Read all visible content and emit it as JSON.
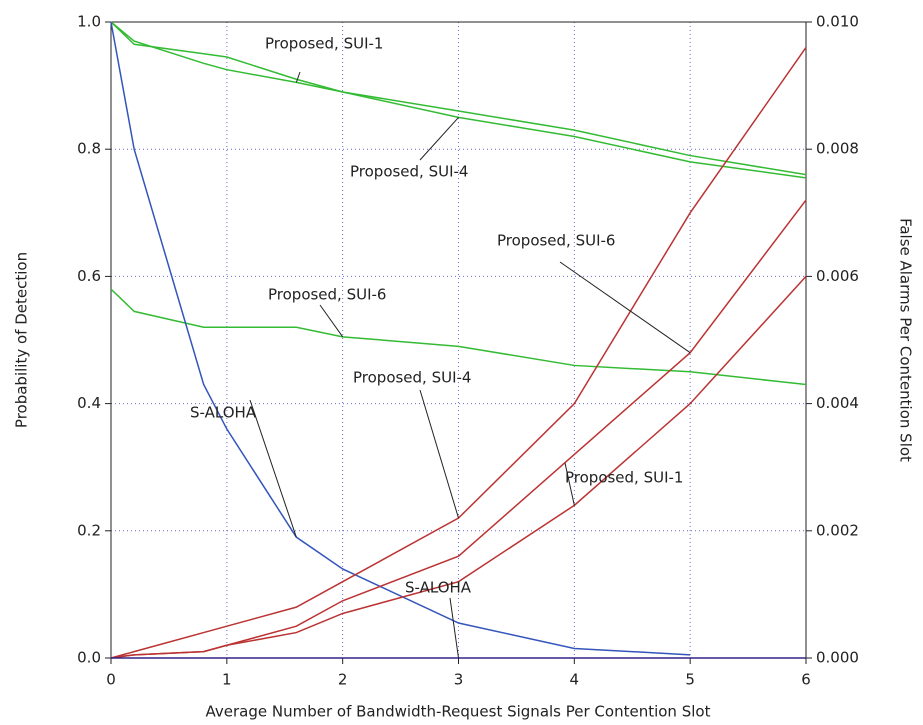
{
  "chart_data": {
    "type": "line",
    "xlabel": "Average Number of Bandwidth-Request Signals Per Contention Slot",
    "ylabel": "Probability of Detection",
    "y2label": "False Alarms Per Contention Slot",
    "x": [
      0,
      0.2,
      0.8,
      1,
      1.6,
      2,
      3,
      4,
      5,
      6
    ],
    "xlim": [
      0,
      6
    ],
    "xticks": [
      0,
      1,
      2,
      3,
      4,
      5,
      6
    ],
    "ylim": [
      0,
      1
    ],
    "yticks": [
      {
        "value": 0,
        "label": "0.0"
      },
      0.2,
      0.4,
      0.6,
      0.8,
      {
        "value": 1,
        "label": "1.0"
      }
    ],
    "y2lim": [
      0,
      0.01
    ],
    "y2ticks": [
      {
        "value": 0,
        "label": "0.000"
      },
      {
        "value": 0.002,
        "label": "0.002"
      },
      {
        "value": 0.004,
        "label": "0.004"
      },
      {
        "value": 0.006,
        "label": "0.006"
      },
      {
        "value": 0.008,
        "label": "0.008"
      },
      {
        "value": 0.01,
        "label": "0.010"
      }
    ],
    "grid": true,
    "series": [
      {
        "name": "Proposed, SUI-1",
        "color": "#33bb33",
        "values": [
          1.0,
          0.97,
          0.935,
          0.925,
          0.905,
          0.89,
          0.86,
          0.83,
          0.79,
          0.76
        ]
      },
      {
        "name": "Proposed, SUI-4",
        "color": "#33bb33",
        "values": [
          1.0,
          0.965,
          0.95,
          0.945,
          0.91,
          0.89,
          0.85,
          0.82,
          0.78,
          0.755
        ]
      },
      {
        "name": "Proposed, SUI-6",
        "color": "#33bb33",
        "values": [
          0.58,
          0.545,
          0.52,
          0.52,
          0.52,
          0.505,
          0.49,
          0.46,
          0.45,
          0.43
        ]
      },
      {
        "name": "S-ALOHA",
        "color": "#3355bb",
        "values": [
          1.0,
          0.8,
          0.43,
          0.36,
          0.19,
          0.14,
          0.055,
          0.015,
          0.005,
          null
        ]
      },
      {
        "name": "Proposed, SUI-4",
        "color": "#bb3333",
        "axis": "y2",
        "values": [
          0,
          0.0001,
          0.0004,
          0.0005,
          0.0008,
          0.0012,
          0.0022,
          0.004,
          0.007,
          0.0096
        ]
      },
      {
        "name": "Proposed, SUI-6",
        "color": "#bb3333",
        "axis": "y2",
        "values": [
          0,
          5e-05,
          0.0001,
          0.0002,
          0.0005,
          0.0009,
          0.0016,
          0.0032,
          0.0048,
          0.0072
        ]
      },
      {
        "name": "Proposed, SUI-1",
        "color": "#bb3333",
        "axis": "y2",
        "values": [
          0,
          5e-05,
          0.0001,
          0.0002,
          0.0004,
          0.0007,
          0.0012,
          0.0024,
          0.004,
          0.006
        ]
      },
      {
        "name": "S-ALOHA",
        "color": "#332288",
        "axis": "y2",
        "values": [
          0,
          0,
          0,
          0,
          0,
          0,
          0,
          0,
          0,
          0
        ]
      }
    ]
  }
}
